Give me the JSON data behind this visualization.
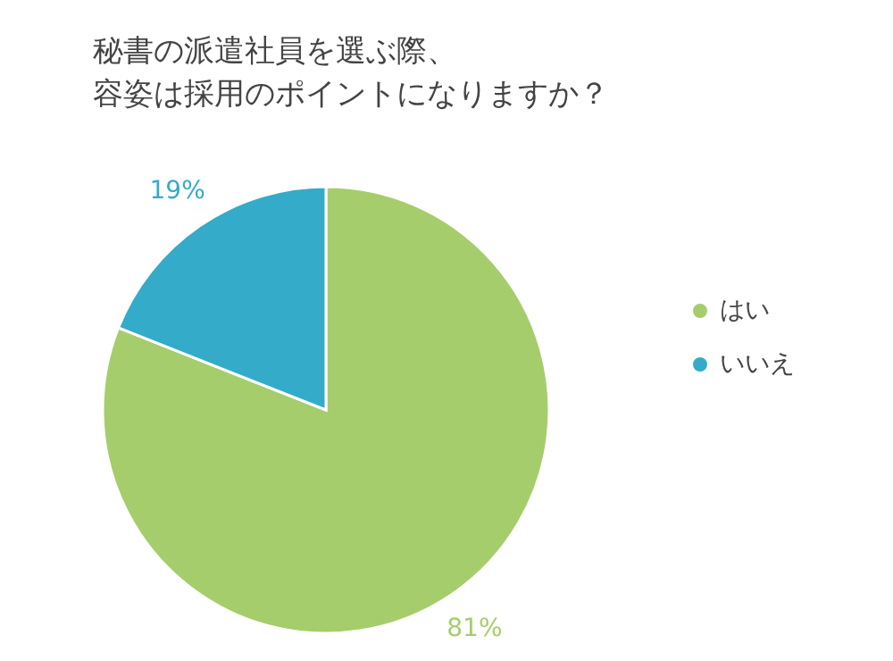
{
  "chart_data": {
    "type": "pie",
    "title": "秘書の派遣社員を選ぶ際、容姿は採用のポイントになりますか？",
    "categories": [
      "はい",
      "いいえ"
    ],
    "values": [
      81,
      19
    ],
    "value_labels": [
      "81%",
      "19%"
    ],
    "colors": [
      "#a5cd6b",
      "#34abc8"
    ],
    "legend": "right"
  }
}
